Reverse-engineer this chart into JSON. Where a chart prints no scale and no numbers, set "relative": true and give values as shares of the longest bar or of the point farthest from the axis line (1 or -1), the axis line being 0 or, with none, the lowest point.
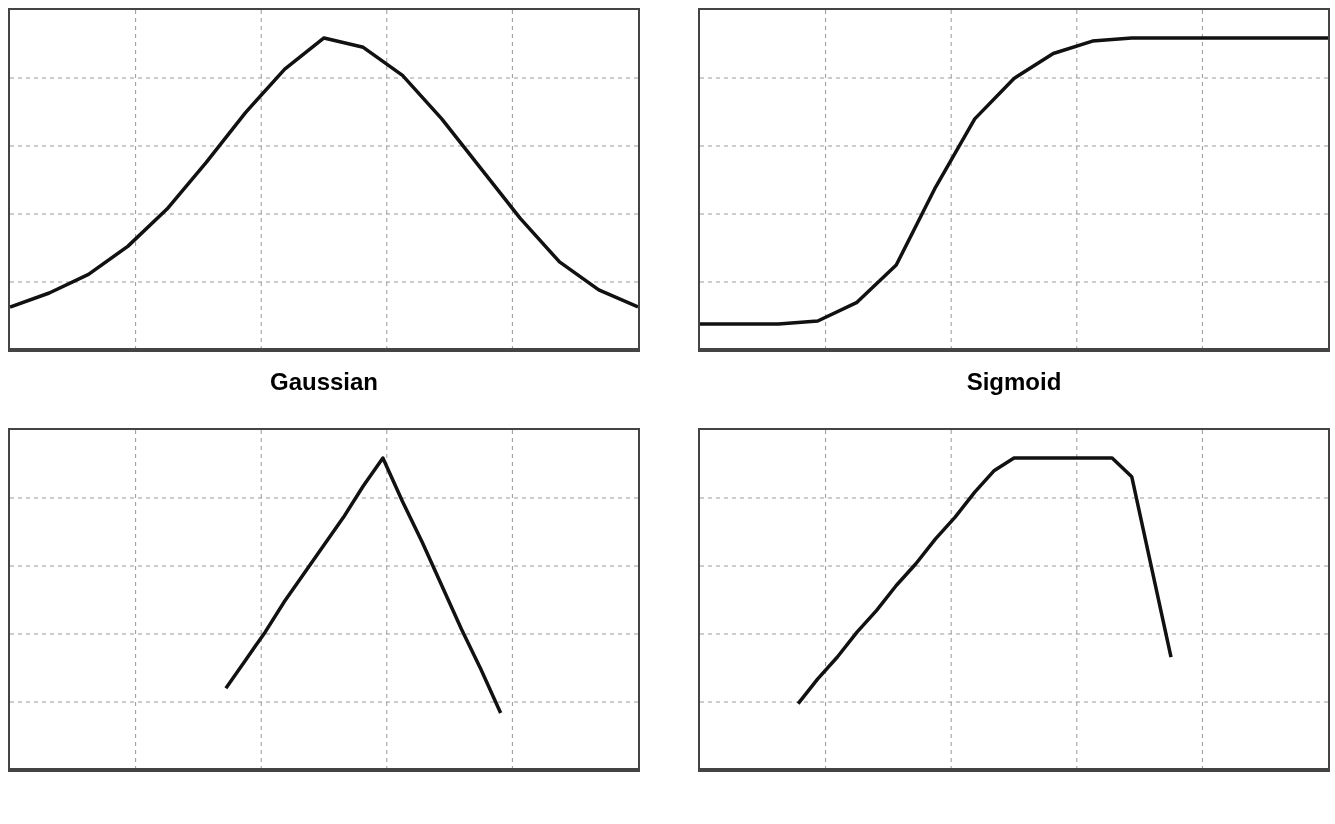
{
  "chart_data": [
    {
      "type": "line",
      "title": "Gaussian",
      "relative": true,
      "grid": true,
      "line_style": "solid",
      "categories": [
        null,
        null,
        null,
        null,
        null,
        null,
        null,
        null,
        null,
        null,
        null,
        null,
        null,
        null,
        null,
        null,
        null
      ],
      "series": [
        {
          "color": "#111111",
          "values": [
            0.135,
            0.18,
            0.24,
            0.33,
            0.45,
            0.6,
            0.76,
            0.9,
            1,
            0.97,
            0.88,
            0.74,
            0.58,
            0.42,
            0.28,
            0.19,
            0.135
          ]
        }
      ]
    },
    {
      "type": "line",
      "title": "Sigmoid",
      "relative": true,
      "grid": true,
      "line_style": "solid",
      "categories": [
        null,
        null,
        null,
        null,
        null,
        null,
        null,
        null,
        null,
        null,
        null,
        null,
        null,
        null,
        null,
        null,
        null
      ],
      "series": [
        {
          "color": "#111111",
          "values": [
            0.08,
            0.08,
            0.08,
            0.09,
            0.15,
            0.27,
            0.52,
            0.74,
            0.87,
            0.95,
            0.99,
            1,
            1,
            1,
            1,
            1,
            1
          ]
        }
      ]
    },
    {
      "type": "line",
      "relative": true,
      "grid": true,
      "line_style": "solid",
      "categories": [
        null,
        null,
        null,
        null,
        null,
        null,
        null,
        null,
        null,
        null,
        null,
        null,
        null,
        null,
        null,
        null,
        null,
        null,
        null,
        null,
        null,
        null,
        null,
        null,
        null,
        null,
        null,
        null,
        null,
        null,
        null,
        null,
        null
      ],
      "series": [
        {
          "color": "#111111",
          "values": [
            null,
            null,
            null,
            null,
            null,
            null,
            null,
            null,
            null,
            null,
            null,
            0.26,
            0.35,
            0.44,
            0.54,
            0.63,
            0.72,
            0.81,
            0.91,
            1,
            0.86,
            0.73,
            0.59,
            0.45,
            0.32,
            0.18,
            null,
            null,
            null,
            null,
            null,
            null,
            null
          ]
        }
      ]
    },
    {
      "type": "line",
      "relative": true,
      "grid": true,
      "line_style": "solid",
      "categories": [
        null,
        null,
        null,
        null,
        null,
        null,
        null,
        null,
        null,
        null,
        null,
        null,
        null,
        null,
        null,
        null,
        null,
        null,
        null,
        null,
        null,
        null,
        null,
        null,
        null,
        null,
        null,
        null,
        null,
        null,
        null,
        null,
        null
      ],
      "series": [
        {
          "color": "#111111",
          "values": [
            null,
            null,
            null,
            null,
            null,
            0.21,
            0.29,
            0.36,
            0.44,
            0.51,
            0.59,
            0.66,
            0.74,
            0.81,
            0.89,
            0.96,
            1,
            1,
            1,
            1,
            1,
            1,
            0.94,
            0.65,
            0.36,
            null,
            null,
            null,
            null,
            null,
            null,
            null,
            null
          ]
        }
      ]
    }
  ]
}
